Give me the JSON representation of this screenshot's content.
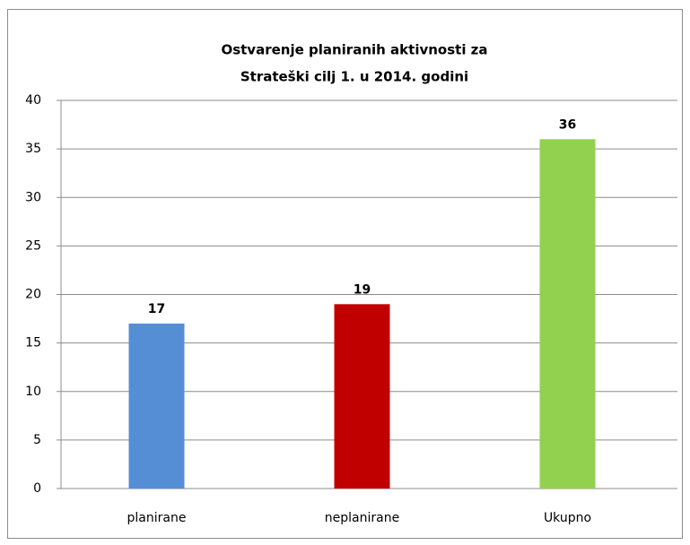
{
  "chart_data": {
    "type": "bar",
    "title": [
      "Ostvarenje planiranih aktivnosti za",
      "Strateški cilj 1. u 2014. godini"
    ],
    "categories": [
      "planirane",
      "neplanirane",
      "Ukupno"
    ],
    "values": [
      17,
      19,
      36
    ],
    "colors": [
      "#558ed5",
      "#c00000",
      "#92d050"
    ],
    "ylim": [
      0,
      40
    ],
    "yticks": [
      0,
      5,
      10,
      15,
      20,
      25,
      30,
      35,
      40
    ],
    "grid": true
  }
}
